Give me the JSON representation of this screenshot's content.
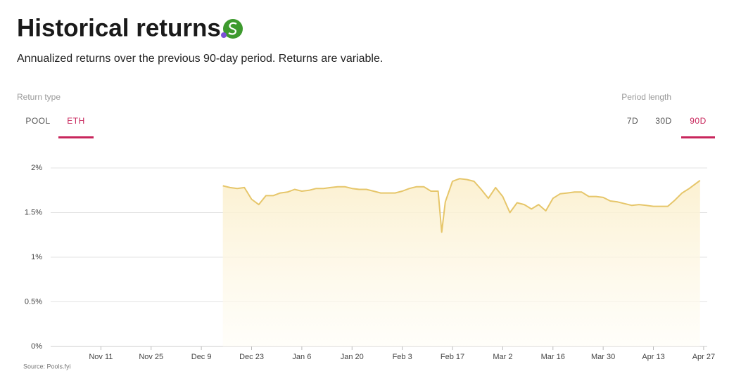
{
  "header": {
    "title": "Historical returns",
    "subtitle": "Annualized returns over the previous 90-day period. Returns are variable."
  },
  "controls": {
    "return_type": {
      "label": "Return type",
      "options": [
        "POOL",
        "ETH"
      ],
      "selected": "ETH"
    },
    "period_length": {
      "label": "Period length",
      "options": [
        "7D",
        "30D",
        "90D"
      ],
      "selected": "90D"
    }
  },
  "chart_data": {
    "type": "line",
    "x": [
      "Dec 15",
      "Dec 17",
      "Dec 19",
      "Dec 21",
      "Dec 23",
      "Dec 25",
      "Dec 27",
      "Dec 29",
      "Dec 31",
      "Jan 2",
      "Jan 4",
      "Jan 6",
      "Jan 8",
      "Jan 10",
      "Jan 12",
      "Jan 14",
      "Jan 16",
      "Jan 18",
      "Jan 20",
      "Jan 22",
      "Jan 24",
      "Jan 26",
      "Jan 28",
      "Jan 30",
      "Feb 1",
      "Feb 3",
      "Feb 5",
      "Feb 7",
      "Feb 9",
      "Feb 11",
      "Feb 13",
      "Feb 14",
      "Feb 15",
      "Feb 17",
      "Feb 19",
      "Feb 21",
      "Feb 23",
      "Feb 25",
      "Feb 27",
      "Feb 29",
      "Mar 2",
      "Mar 4",
      "Mar 6",
      "Mar 8",
      "Mar 10",
      "Mar 12",
      "Mar 14",
      "Mar 16",
      "Mar 18",
      "Mar 20",
      "Mar 22",
      "Mar 24",
      "Mar 26",
      "Mar 28",
      "Mar 30",
      "Apr 1",
      "Apr 3",
      "Apr 5",
      "Apr 7",
      "Apr 9",
      "Apr 11",
      "Apr 13",
      "Apr 15",
      "Apr 17",
      "Apr 19",
      "Apr 21",
      "Apr 23",
      "Apr 25",
      "Apr 26"
    ],
    "values": [
      1.8,
      1.78,
      1.77,
      1.78,
      1.65,
      1.59,
      1.69,
      1.69,
      1.72,
      1.73,
      1.76,
      1.74,
      1.75,
      1.77,
      1.77,
      1.78,
      1.79,
      1.79,
      1.77,
      1.76,
      1.76,
      1.74,
      1.72,
      1.72,
      1.72,
      1.74,
      1.77,
      1.79,
      1.79,
      1.74,
      1.74,
      1.28,
      1.62,
      1.85,
      1.88,
      1.87,
      1.85,
      1.76,
      1.66,
      1.78,
      1.68,
      1.5,
      1.61,
      1.59,
      1.54,
      1.59,
      1.52,
      1.66,
      1.71,
      1.72,
      1.73,
      1.73,
      1.68,
      1.68,
      1.67,
      1.63,
      1.62,
      1.6,
      1.58,
      1.59,
      1.58,
      1.57,
      1.57,
      1.57,
      1.64,
      1.72,
      1.77,
      1.83,
      1.86
    ],
    "color": "#e6c66a",
    "area": true,
    "grid": true,
    "xlim": [
      "Oct 28",
      "Apr 28"
    ],
    "xticks": [
      "Nov 11",
      "Nov 25",
      "Dec 9",
      "Dec 23",
      "Jan 6",
      "Jan 20",
      "Feb 3",
      "Feb 17",
      "Mar 2",
      "Mar 16",
      "Mar 30",
      "Apr 13",
      "Apr 27"
    ],
    "ylim": [
      0,
      2
    ],
    "yticks": [
      {
        "value": 0,
        "label": "0%"
      },
      {
        "value": 0.5,
        "label": "0.5%"
      },
      {
        "value": 1,
        "label": "1%"
      },
      {
        "value": 1.5,
        "label": "1.5%"
      },
      {
        "value": 2,
        "label": "2%"
      }
    ]
  },
  "source": "Source: Pools.fyi"
}
